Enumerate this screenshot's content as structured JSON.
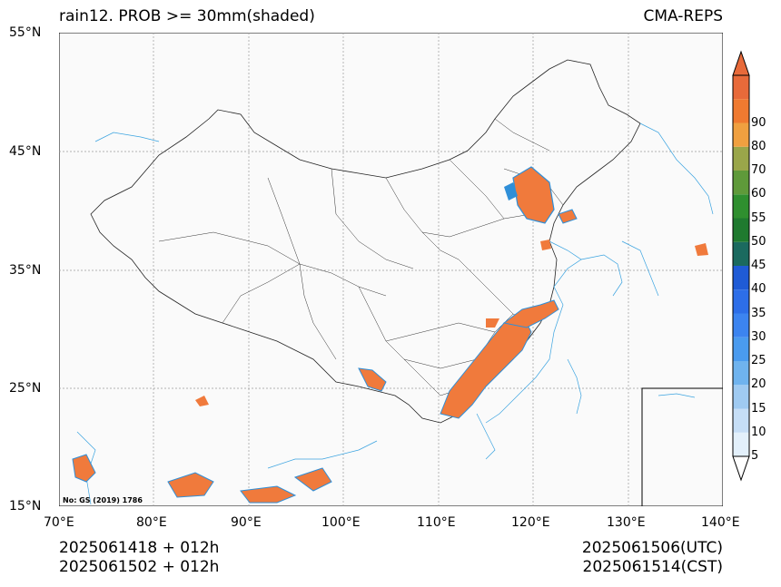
{
  "title": {
    "left": "rain12. PROB >= 30mm(shaded)",
    "right": "CMA-REPS"
  },
  "axes": {
    "lat_labels": [
      "55°N",
      "45°N",
      "35°N",
      "25°N",
      "15°N"
    ],
    "lon_labels": [
      "70°E",
      "80°E",
      "90°E",
      "100°E",
      "110°E",
      "120°E",
      "130°E",
      "140°E"
    ],
    "lat_range": [
      15,
      55
    ],
    "lon_range": [
      70,
      140
    ],
    "grid": true
  },
  "footer": {
    "init_line1": "2025061418  +  012h",
    "init_line2": "2025061502  +  012h",
    "valid_utc": "2025061506(UTC)",
    "valid_cst": "2025061514(CST)"
  },
  "map_note": "No: GS (2019) 1786",
  "colorbar": {
    "levels": [
      "5",
      "10",
      "15",
      "20",
      "25",
      "30",
      "35",
      "40",
      "45",
      "50",
      "55",
      "60",
      "70",
      "80",
      "90"
    ],
    "colors": [
      "#e3f0fb",
      "#c6def6",
      "#9fcaf1",
      "#6fb3ee",
      "#4a9bef",
      "#3c84f0",
      "#2d6ee8",
      "#1f5bd6",
      "#1b6a5f",
      "#1f7a2f",
      "#2f8f2f",
      "#5f9a3a",
      "#9aa64a",
      "#f0a040",
      "#f07a30",
      "#e86a3a"
    ]
  },
  "colors": {
    "coast": "#3aa3e0",
    "border": "#222222",
    "precip_main": "#f07a3c",
    "precip_edge": "#2f8fd8"
  }
}
